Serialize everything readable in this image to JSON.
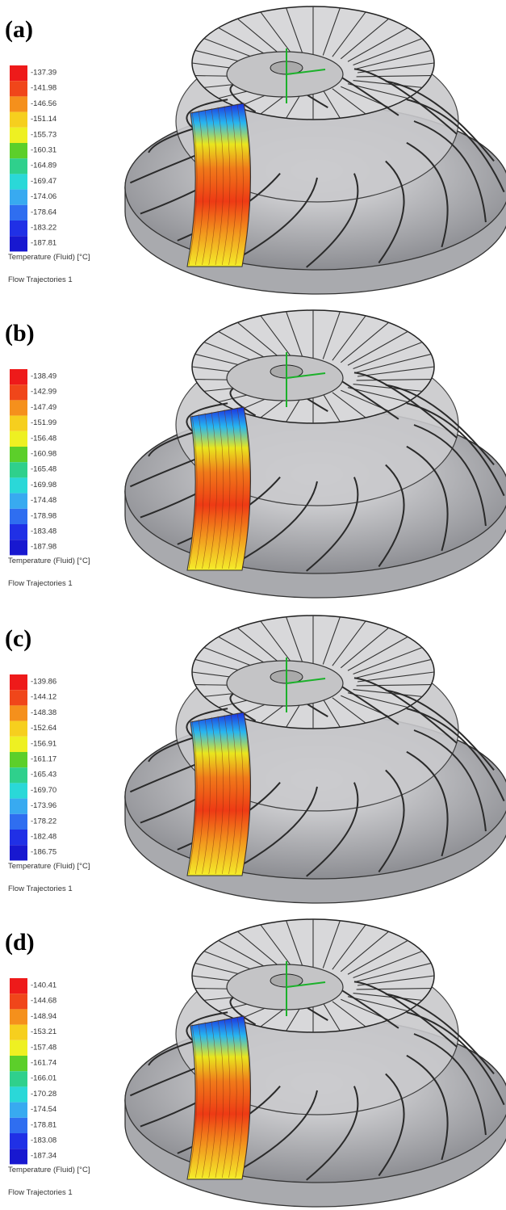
{
  "panels": [
    {
      "label": "(a)",
      "legend": {
        "values": [
          "-137.39",
          "-141.98",
          "-146.56",
          "-151.14",
          "-155.73",
          "-160.31",
          "-164.89",
          "-169.47",
          "-174.06",
          "-178.64",
          "-183.22",
          "-187.81"
        ],
        "title": "Temperature (Fluid) [°C]"
      },
      "caption": "Flow Trajectories 1"
    },
    {
      "label": "(b)",
      "legend": {
        "values": [
          "-138.49",
          "-142.99",
          "-147.49",
          "-151.99",
          "-156.48",
          "-160.98",
          "-165.48",
          "-169.98",
          "-174.48",
          "-178.98",
          "-183.48",
          "-187.98"
        ],
        "title": "Temperature (Fluid) [°C]"
      },
      "caption": "Flow Trajectories 1"
    },
    {
      "label": "(c)",
      "legend": {
        "values": [
          "-139.86",
          "-144.12",
          "-148.38",
          "-152.64",
          "-156.91",
          "-161.17",
          "-165.43",
          "-169.70",
          "-173.96",
          "-178.22",
          "-182.48",
          "-186.75"
        ],
        "title": "Temperature (Fluid) [°C]"
      },
      "caption": "Flow Trajectories 1"
    },
    {
      "label": "(d)",
      "legend": {
        "values": [
          "-140.41",
          "-144.68",
          "-148.94",
          "-153.21",
          "-157.48",
          "-161.74",
          "-166.01",
          "-170.28",
          "-174.54",
          "-178.81",
          "-183.08",
          "-187.34"
        ],
        "title": "Temperature (Fluid) [°C]"
      },
      "caption": "Flow Trajectories 1"
    }
  ]
}
